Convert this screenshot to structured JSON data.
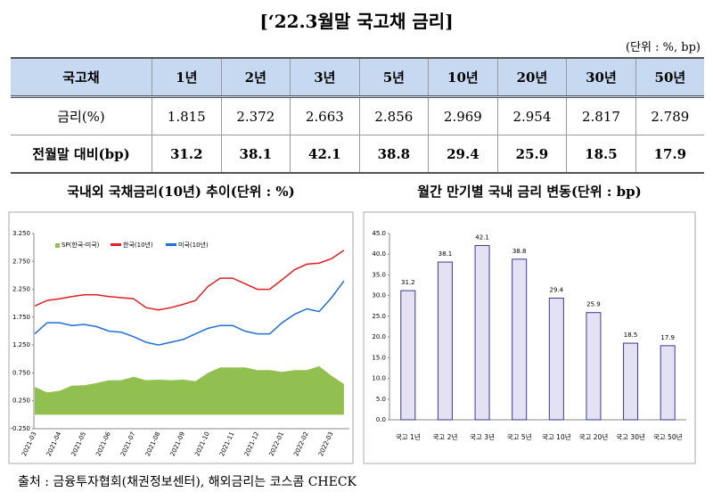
{
  "title": "[‘22.3월말 국고채 금리]",
  "unit": "(단위 : %, bp)",
  "table": {
    "header": [
      "국고채",
      "1년",
      "2년",
      "3년",
      "5년",
      "10년",
      "20년",
      "30년",
      "50년"
    ],
    "rows": [
      [
        "금리(%)",
        1.815,
        2.372,
        2.663,
        2.856,
        2.969,
        2.954,
        2.817,
        2.789
      ],
      [
        "전월말 대비(bp)",
        31.2,
        38.1,
        42.1,
        38.8,
        29.4,
        25.9,
        18.5,
        17.9
      ]
    ]
  },
  "chart_data": [
    {
      "type": "line",
      "title": "국내외 국채금리(10년) 추이(단위 : %)",
      "categories": [
        "2021-03",
        null,
        "2021-04",
        null,
        "2021-05",
        null,
        "2021-06",
        null,
        "2021-07",
        null,
        "2021-08",
        null,
        "2021-09",
        null,
        "2021-10",
        null,
        "2021-11",
        null,
        "2021-12",
        null,
        "2022-01",
        null,
        "2022-02",
        null,
        "2022-03",
        null
      ],
      "series": [
        {
          "name": "SP(한국-미국)",
          "color": "#92c050",
          "type": "area",
          "values": [
            0.5,
            0.4,
            0.43,
            0.52,
            0.53,
            0.57,
            0.62,
            0.62,
            0.68,
            0.62,
            0.63,
            0.62,
            0.63,
            0.6,
            0.75,
            0.85,
            0.85,
            0.85,
            0.8,
            0.8,
            0.77,
            0.8,
            0.8,
            0.87,
            0.7,
            0.55
          ]
        },
        {
          "name": "한국(10년)",
          "color": "#e02020",
          "type": "line",
          "values": [
            1.95,
            2.05,
            2.08,
            2.12,
            2.15,
            2.15,
            2.12,
            2.1,
            2.08,
            1.92,
            1.88,
            1.92,
            1.98,
            2.05,
            2.3,
            2.45,
            2.45,
            2.35,
            2.25,
            2.25,
            2.42,
            2.6,
            2.7,
            2.72,
            2.8,
            2.95
          ]
        },
        {
          "name": "미국(10년)",
          "color": "#1f6fd8",
          "type": "line",
          "values": [
            1.45,
            1.65,
            1.65,
            1.6,
            1.62,
            1.58,
            1.5,
            1.48,
            1.4,
            1.3,
            1.25,
            1.3,
            1.35,
            1.45,
            1.55,
            1.6,
            1.6,
            1.5,
            1.45,
            1.45,
            1.65,
            1.8,
            1.9,
            1.85,
            2.1,
            2.4
          ]
        }
      ],
      "ylim": [
        -0.25,
        3.25
      ],
      "yticks": [
        {
          "value": -0.25,
          "label": "-0.250"
        },
        {
          "value": 0.25,
          "label": "0.250"
        },
        {
          "value": 0.75,
          "label": "0.750"
        },
        {
          "value": 1.25,
          "label": "1.250"
        },
        {
          "value": 1.75,
          "label": "1.750"
        },
        {
          "value": 2.25,
          "label": "2.250"
        },
        {
          "value": 2.75,
          "label": "2.750"
        },
        {
          "value": 3.25,
          "label": "3.250"
        }
      ],
      "grid": false,
      "legend": "top"
    },
    {
      "type": "bar",
      "title": "월간 만기별 국내 금리 변동(단위 : bp)",
      "categories": [
        "국고 1년",
        "국고 2년",
        "국고 3년",
        "국고 5년",
        "국고 10년",
        "국고 20년",
        "국고 30년",
        "국고 50년"
      ],
      "values": [
        31.2,
        38.1,
        42.1,
        38.8,
        29.4,
        25.9,
        18.5,
        17.9
      ],
      "color": "#e3e1f2",
      "stroke": "#3a3a96",
      "ylim": [
        0,
        45
      ],
      "yticks": [
        {
          "value": 0,
          "label": "0.0"
        },
        {
          "value": 5,
          "label": "5.0"
        },
        {
          "value": 10,
          "label": "10.0"
        },
        {
          "value": 15,
          "label": "15.0"
        },
        {
          "value": 20,
          "label": "20.0"
        },
        {
          "value": 25,
          "label": "25.0"
        },
        {
          "value": 30,
          "label": "30.0"
        },
        {
          "value": 35,
          "label": "35.0"
        },
        {
          "value": 40,
          "label": "40.0"
        },
        {
          "value": 45,
          "label": "45.0"
        }
      ],
      "grid": false
    }
  ],
  "source": "출처 : 금융투자협회(채권정보센터), 해외금리는 코스콤 CHECK"
}
